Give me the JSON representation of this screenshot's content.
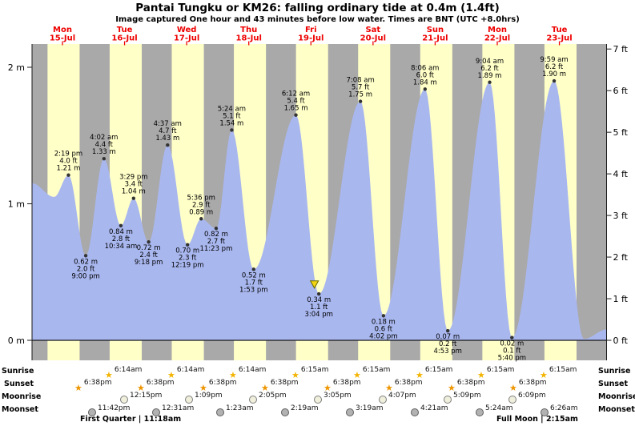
{
  "header": {
    "title": "Pantai Tungku or KM26: falling ordinary tide at 0.4m (1.4ft)",
    "subtitle": "Image captured One hour and 43 minutes before low water. Times are BNT (UTC +8.0hrs)"
  },
  "days": [
    {
      "name": "Mon",
      "date": "15-Jul"
    },
    {
      "name": "Tue",
      "date": "16-Jul"
    },
    {
      "name": "Wed",
      "date": "17-Jul"
    },
    {
      "name": "Thu",
      "date": "18-Jul"
    },
    {
      "name": "Fri",
      "date": "19-Jul"
    },
    {
      "name": "Sat",
      "date": "20-Jul"
    },
    {
      "name": "Sun",
      "date": "21-Jul"
    },
    {
      "name": "Mon",
      "date": "22-Jul"
    },
    {
      "name": "Tue",
      "date": "23-Jul"
    }
  ],
  "y_axis": {
    "left_labels": [
      "0 m",
      "1 m",
      "2 m"
    ],
    "right_labels": [
      "0 ft",
      "1 ft",
      "2 ft",
      "3 ft",
      "4 ft",
      "5 ft",
      "6 ft",
      "7 ft"
    ]
  },
  "chart_data": {
    "type": "area",
    "title": "Pantai Tungku or KM26 tide curve",
    "x_unit": "hours since Mon 15-Jul 00:00 (BNT)",
    "y_unit_left": "m",
    "y_unit_right": "ft",
    "ylim_m": [
      0,
      2.17
    ],
    "ylim_ft": [
      0,
      7
    ],
    "lead_anchors": [
      {
        "t": 0.25,
        "h": 1.15
      },
      {
        "t": 8.8,
        "h": 1.05
      }
    ],
    "trail_anchors": [
      {
        "t": 213.5,
        "h": 0.01
      },
      {
        "t": 222.4,
        "h": 0.08
      }
    ],
    "points": [
      {
        "t": 14.317,
        "height_m": 1.21,
        "type": "high",
        "labels": [
          "2:19 pm",
          "4.0 ft",
          "1.21 m"
        ]
      },
      {
        "t": 21.0,
        "height_m": 0.62,
        "type": "low",
        "labels": [
          "0.62 m",
          "2.0 ft",
          "9:00 pm"
        ]
      },
      {
        "t": 28.033,
        "height_m": 1.33,
        "type": "high",
        "labels": [
          "4:02 am",
          "4.4 ft",
          "1.33 m"
        ]
      },
      {
        "t": 34.567,
        "height_m": 0.84,
        "type": "low",
        "labels": [
          "0.84 m",
          "2.8 ft",
          "10:34 am"
        ]
      },
      {
        "t": 39.483,
        "height_m": 1.04,
        "type": "high",
        "labels": [
          "3:29 pm",
          "3.4 ft",
          "1.04 m"
        ]
      },
      {
        "t": 45.3,
        "height_m": 0.72,
        "type": "low",
        "labels": [
          "0.72 m",
          "2.4 ft",
          "9:18 pm"
        ]
      },
      {
        "t": 52.617,
        "height_m": 1.43,
        "type": "high",
        "labels": [
          "4:37 am",
          "4.7 ft",
          "1.43 m"
        ]
      },
      {
        "t": 60.317,
        "height_m": 0.7,
        "type": "low",
        "labels": [
          "0.70 m",
          "2.3 ft",
          "12:19 pm"
        ]
      },
      {
        "t": 65.6,
        "height_m": 0.89,
        "type": "high",
        "labels": [
          "5:36 pm",
          "2.9 ft",
          "0.89 m"
        ]
      },
      {
        "t": 71.383,
        "height_m": 0.82,
        "type": "low",
        "labels": [
          "0.82 m",
          "2.7 ft",
          "11:23 pm"
        ]
      },
      {
        "t": 77.4,
        "height_m": 1.54,
        "type": "high",
        "labels": [
          "5:24 am",
          "5.1 ft",
          "1.54 m"
        ]
      },
      {
        "t": 85.883,
        "height_m": 0.52,
        "type": "low",
        "labels": [
          "0.52 m",
          "1.7 ft",
          "1:53 pm"
        ]
      },
      {
        "t": 102.2,
        "height_m": 1.65,
        "type": "high",
        "labels": [
          "6:12 am",
          "5.4 ft",
          "1.65 m"
        ]
      },
      {
        "t": 111.067,
        "height_m": 0.34,
        "type": "low",
        "labels": [
          "0.34 m",
          "1.1 ft",
          "3:04 pm"
        ]
      },
      {
        "t": 127.133,
        "height_m": 1.75,
        "type": "high",
        "labels": [
          "7:08 am",
          "5.7 ft",
          "1.75 m"
        ]
      },
      {
        "t": 136.033,
        "height_m": 0.18,
        "type": "low",
        "labels": [
          "0.18 m",
          "0.6 ft",
          "4:02 pm"
        ]
      },
      {
        "t": 152.1,
        "height_m": 1.84,
        "type": "high",
        "labels": [
          "8:06 am",
          "6.0 ft",
          "1.84 m"
        ]
      },
      {
        "t": 160.883,
        "height_m": 0.07,
        "type": "low",
        "labels": [
          "0.07 m",
          "0.2 ft",
          "4:53 pm"
        ]
      },
      {
        "t": 177.067,
        "height_m": 1.89,
        "type": "high",
        "labels": [
          "9:04 am",
          "6.2 ft",
          "1.89 m"
        ]
      },
      {
        "t": 185.667,
        "height_m": 0.02,
        "type": "low",
        "labels": [
          "0.02 m",
          "0.1 ft",
          "5:40 pm"
        ]
      },
      {
        "t": 201.983,
        "height_m": 1.9,
        "type": "high",
        "labels": [
          "9:59 am",
          "6.2 ft",
          "1.90 m"
        ]
      }
    ],
    "current_marker": {
      "t": 109.35,
      "height_m": 0.4
    },
    "bands": {
      "sunrise_hour": 6.233,
      "sunset_hour": 18.633
    }
  },
  "astro": {
    "rows": [
      {
        "label": "Sunrise",
        "icon": "sun-sunrise",
        "events": [
          {
            "t": 30.233,
            "time": "6:14am"
          },
          {
            "t": 54.233,
            "time": "6:14am"
          },
          {
            "t": 78.233,
            "time": "6:14am"
          },
          {
            "t": 102.25,
            "time": "6:15am"
          },
          {
            "t": 126.25,
            "time": "6:15am"
          },
          {
            "t": 150.25,
            "time": "6:15am"
          },
          {
            "t": 174.25,
            "time": "6:15am"
          },
          {
            "t": 198.25,
            "time": "6:15am"
          }
        ]
      },
      {
        "label": "Sunset",
        "icon": "sun-sunset",
        "events": [
          {
            "t": 18.633,
            "time": "6:38pm"
          },
          {
            "t": 42.633,
            "time": "6:38pm"
          },
          {
            "t": 66.633,
            "time": "6:38pm"
          },
          {
            "t": 90.633,
            "time": "6:38pm"
          },
          {
            "t": 114.633,
            "time": "6:38pm"
          },
          {
            "t": 138.633,
            "time": "6:38pm"
          },
          {
            "t": 162.633,
            "time": "6:38pm"
          },
          {
            "t": 186.633,
            "time": "6:38pm"
          }
        ]
      },
      {
        "label": "Moonrise",
        "icon": "moon-light",
        "events": [
          {
            "t": 36.25,
            "time": "12:15pm"
          },
          {
            "t": 61.15,
            "time": "1:09pm"
          },
          {
            "t": 86.083,
            "time": "2:05pm"
          },
          {
            "t": 111.083,
            "time": "3:05pm"
          },
          {
            "t": 136.117,
            "time": "4:07pm"
          },
          {
            "t": 161.15,
            "time": "5:09pm"
          },
          {
            "t": 186.15,
            "time": "6:09pm"
          }
        ]
      },
      {
        "label": "Moonset",
        "icon": "moon-dark",
        "events": [
          {
            "t": 23.7,
            "time": "11:42pm"
          },
          {
            "t": 48.517,
            "time": "12:31am"
          },
          {
            "t": 73.383,
            "time": "1:23am"
          },
          {
            "t": 98.317,
            "time": "2:19am"
          },
          {
            "t": 123.317,
            "time": "3:19am"
          },
          {
            "t": 148.35,
            "time": "4:21am"
          },
          {
            "t": 173.4,
            "time": "5:24am"
          },
          {
            "t": 198.433,
            "time": "6:26am"
          }
        ]
      }
    ],
    "phases": [
      {
        "text": "First Quarter | 11:18am"
      },
      {
        "text": "Full Moon | 2:15am"
      }
    ]
  },
  "colors": {
    "day_band": "#ffffc8",
    "night_band": "#a9a9a9",
    "tide_fill": "#a9b7ef",
    "label_red": "#ee0000",
    "axis": "#1a1a1a",
    "marker_dot": "#333333",
    "current_marker_fill": "#f2d411",
    "current_marker_stroke": "#6b6b00"
  }
}
